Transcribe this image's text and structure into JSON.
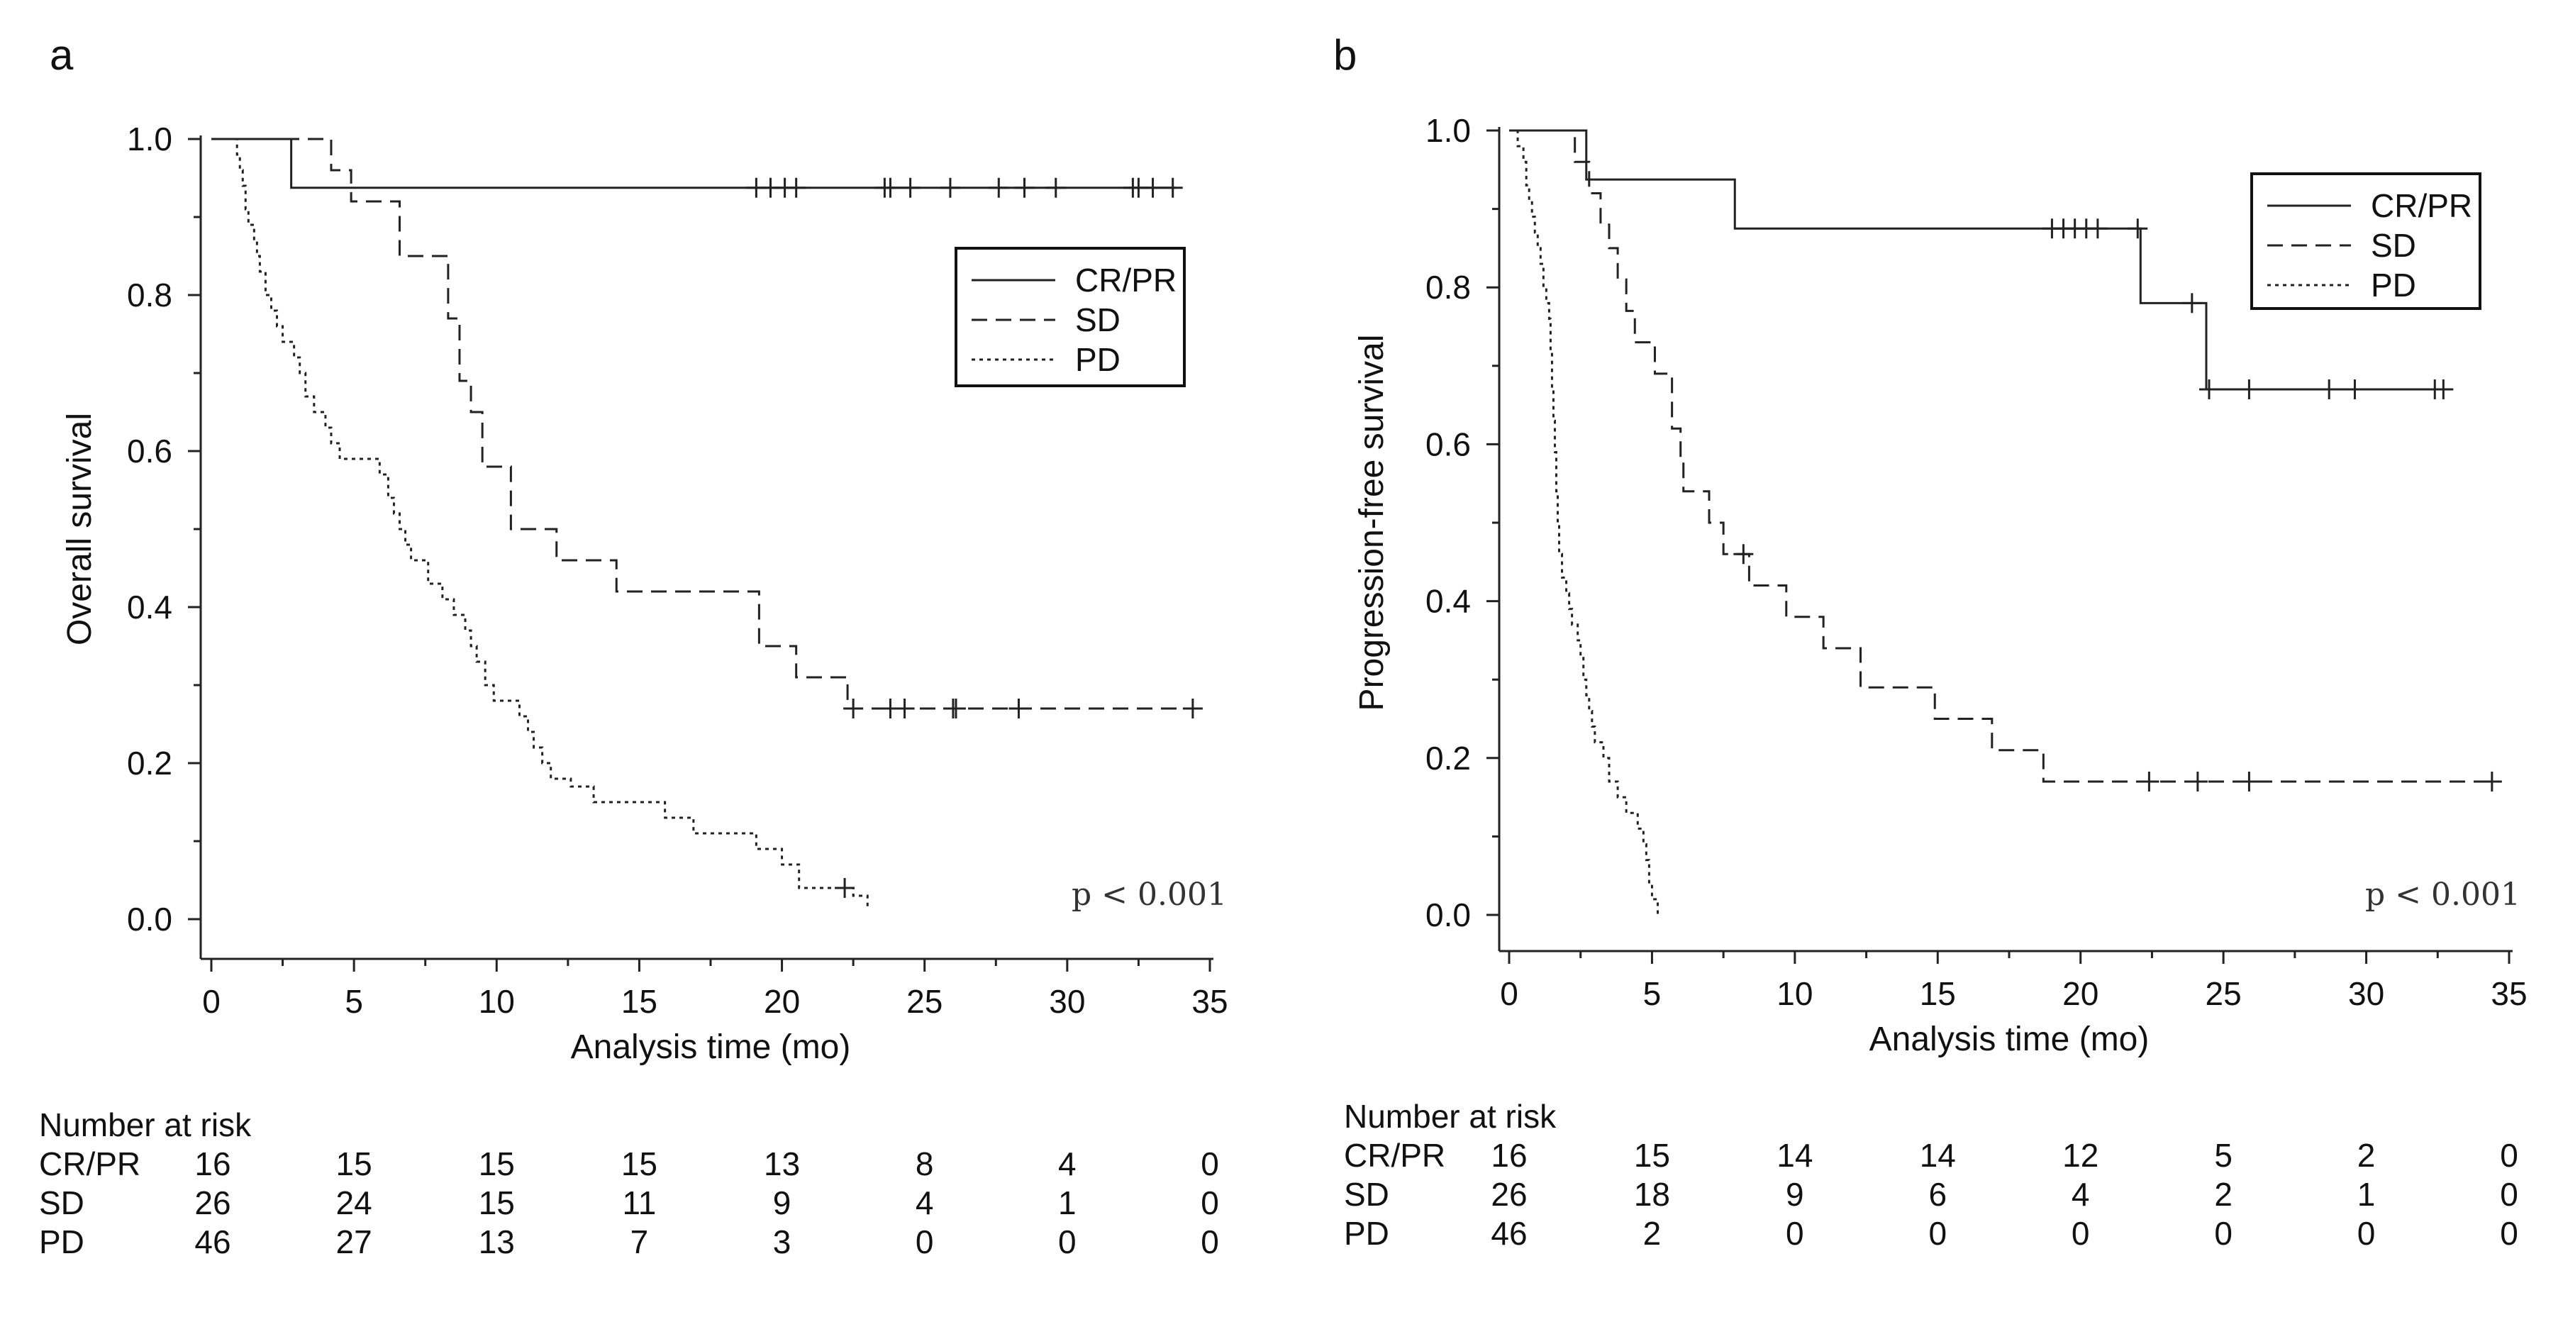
{
  "chart_data": [
    {
      "panel_label": "a",
      "type": "line",
      "subtype": "kaplan-meier",
      "xlabel": "Analysis time (mo)",
      "ylabel": "Overall survival",
      "xlim": [
        0,
        35
      ],
      "ylim": [
        0,
        1
      ],
      "x_ticks": [
        "0",
        "5",
        "10",
        "15",
        "20",
        "25",
        "30",
        "35"
      ],
      "y_ticks": [
        "0.0",
        "0.2",
        "0.4",
        "0.6",
        "0.8",
        "1.0"
      ],
      "legend_position": "top-right",
      "annotation": "p < 0.001",
      "series": [
        {
          "name": "CR/PR",
          "style": "solid",
          "steps": [
            [
              0,
              1.0
            ],
            [
              2.8,
              0.9375
            ]
          ],
          "end_time": 33.8,
          "censored": [
            19.1,
            19.6,
            20.1,
            20.5,
            23.6,
            23.8,
            24.5,
            25.9,
            27.6,
            28.5,
            29.6,
            32.3,
            32.5,
            33.0,
            33.7
          ]
        },
        {
          "name": "SD",
          "style": "dashed",
          "steps": [
            [
              0,
              1.0
            ],
            [
              4.2,
              0.96
            ],
            [
              4.9,
              0.92
            ],
            [
              6.6,
              0.85
            ],
            [
              8.3,
              0.77
            ],
            [
              8.7,
              0.69
            ],
            [
              9.1,
              0.65
            ],
            [
              9.5,
              0.58
            ],
            [
              10.5,
              0.5
            ],
            [
              12.1,
              0.46
            ],
            [
              14.2,
              0.42
            ],
            [
              19.2,
              0.35
            ],
            [
              20.5,
              0.31
            ],
            [
              22.3,
              0.27
            ]
          ],
          "end_time": 34.4,
          "censored": [
            22.5,
            23.8,
            24.3,
            26.0,
            26.1,
            28.3,
            34.4
          ]
        },
        {
          "name": "PD",
          "style": "dotted",
          "steps": [
            [
              0,
              1.0
            ],
            [
              0.9,
              0.98
            ],
            [
              1.0,
              0.96
            ],
            [
              1.1,
              0.94
            ],
            [
              1.2,
              0.91
            ],
            [
              1.3,
              0.89
            ],
            [
              1.5,
              0.87
            ],
            [
              1.6,
              0.85
            ],
            [
              1.7,
              0.83
            ],
            [
              1.9,
              0.8
            ],
            [
              2.1,
              0.78
            ],
            [
              2.3,
              0.76
            ],
            [
              2.5,
              0.74
            ],
            [
              2.9,
              0.72
            ],
            [
              3.1,
              0.7
            ],
            [
              3.3,
              0.67
            ],
            [
              3.6,
              0.65
            ],
            [
              4.0,
              0.63
            ],
            [
              4.2,
              0.61
            ],
            [
              4.5,
              0.59
            ],
            [
              5.9,
              0.57
            ],
            [
              6.2,
              0.54
            ],
            [
              6.4,
              0.52
            ],
            [
              6.6,
              0.5
            ],
            [
              6.8,
              0.48
            ],
            [
              7.0,
              0.46
            ],
            [
              7.6,
              0.43
            ],
            [
              8.1,
              0.41
            ],
            [
              8.5,
              0.39
            ],
            [
              8.9,
              0.37
            ],
            [
              9.1,
              0.35
            ],
            [
              9.3,
              0.33
            ],
            [
              9.6,
              0.3
            ],
            [
              9.9,
              0.28
            ],
            [
              10.8,
              0.26
            ],
            [
              11.1,
              0.24
            ],
            [
              11.3,
              0.22
            ],
            [
              11.6,
              0.2
            ],
            [
              11.9,
              0.18
            ],
            [
              12.6,
              0.17
            ],
            [
              13.4,
              0.15
            ],
            [
              15.9,
              0.13
            ],
            [
              16.9,
              0.11
            ],
            [
              19.1,
              0.09
            ],
            [
              20.0,
              0.07
            ],
            [
              20.6,
              0.04
            ],
            [
              22.5,
              0.03
            ],
            [
              23.0,
              0.015
            ]
          ],
          "end_time": 23.0,
          "censored": [
            22.2
          ]
        }
      ],
      "risk_table": {
        "title": "Number at risk",
        "times": [
          0,
          5,
          10,
          15,
          20,
          25,
          30,
          35
        ],
        "rows": [
          {
            "label": "CR/PR",
            "values": [
              "16",
              "15",
              "15",
              "15",
              "13",
              "8",
              "4",
              "0"
            ]
          },
          {
            "label": "SD",
            "values": [
              "26",
              "24",
              "15",
              "11",
              "9",
              "4",
              "1",
              "0"
            ]
          },
          {
            "label": "PD",
            "values": [
              "46",
              "27",
              "13",
              "7",
              "3",
              "0",
              "0",
              "0"
            ]
          }
        ]
      }
    },
    {
      "panel_label": "b",
      "type": "line",
      "subtype": "kaplan-meier",
      "xlabel": "Analysis time (mo)",
      "ylabel": "Progression-free survival",
      "xlim": [
        0,
        35
      ],
      "ylim": [
        0,
        1
      ],
      "x_ticks": [
        "0",
        "5",
        "10",
        "15",
        "20",
        "25",
        "30",
        "35"
      ],
      "y_ticks": [
        "0.0",
        "0.2",
        "0.4",
        "0.6",
        "0.8",
        "1.0"
      ],
      "legend_position": "top-right",
      "annotation": "p < 0.001",
      "series": [
        {
          "name": "CR/PR",
          "style": "solid",
          "steps": [
            [
              0,
              1.0
            ],
            [
              2.7,
              0.9375
            ],
            [
              7.9,
              0.875
            ],
            [
              22.1,
              0.78
            ],
            [
              24.4,
              0.67
            ]
          ],
          "end_time": 32.8,
          "censored": [
            19.0,
            19.4,
            19.8,
            20.2,
            20.6,
            22.0,
            23.9,
            24.5,
            25.9,
            28.7,
            29.6,
            32.4,
            32.7
          ]
        },
        {
          "name": "SD",
          "style": "dashed",
          "steps": [
            [
              0,
              1.0
            ],
            [
              2.3,
              0.96
            ],
            [
              2.8,
              0.92
            ],
            [
              3.2,
              0.88
            ],
            [
              3.5,
              0.85
            ],
            [
              3.8,
              0.81
            ],
            [
              4.1,
              0.77
            ],
            [
              4.4,
              0.73
            ],
            [
              5.1,
              0.69
            ],
            [
              5.7,
              0.62
            ],
            [
              6.0,
              0.58
            ],
            [
              6.1,
              0.54
            ],
            [
              7.0,
              0.5
            ],
            [
              7.5,
              0.46
            ],
            [
              8.4,
              0.42
            ],
            [
              9.7,
              0.38
            ],
            [
              11.0,
              0.34
            ],
            [
              12.3,
              0.29
            ],
            [
              14.9,
              0.25
            ],
            [
              16.9,
              0.21
            ],
            [
              18.7,
              0.17
            ]
          ],
          "end_time": 34.5,
          "censored": [
            8.2,
            22.4,
            24.1,
            25.9,
            34.4
          ]
        },
        {
          "name": "PD",
          "style": "dotted",
          "steps": [
            [
              0,
              1.0
            ],
            [
              0.3,
              0.98
            ],
            [
              0.5,
              0.96
            ],
            [
              0.6,
              0.93
            ],
            [
              0.7,
              0.91
            ],
            [
              0.8,
              0.89
            ],
            [
              0.9,
              0.87
            ],
            [
              1.0,
              0.85
            ],
            [
              1.1,
              0.83
            ],
            [
              1.2,
              0.8
            ],
            [
              1.3,
              0.78
            ],
            [
              1.4,
              0.76
            ],
            [
              1.45,
              0.72
            ],
            [
              1.5,
              0.67
            ],
            [
              1.55,
              0.63
            ],
            [
              1.6,
              0.59
            ],
            [
              1.65,
              0.54
            ],
            [
              1.7,
              0.5
            ],
            [
              1.75,
              0.46
            ],
            [
              1.85,
              0.43
            ],
            [
              2.0,
              0.41
            ],
            [
              2.1,
              0.39
            ],
            [
              2.2,
              0.37
            ],
            [
              2.4,
              0.35
            ],
            [
              2.5,
              0.33
            ],
            [
              2.6,
              0.3
            ],
            [
              2.7,
              0.28
            ],
            [
              2.8,
              0.26
            ],
            [
              2.9,
              0.24
            ],
            [
              3.0,
              0.22
            ],
            [
              3.3,
              0.2
            ],
            [
              3.5,
              0.17
            ],
            [
              3.8,
              0.15
            ],
            [
              4.1,
              0.13
            ],
            [
              4.5,
              0.11
            ],
            [
              4.7,
              0.09
            ],
            [
              4.8,
              0.07
            ],
            [
              4.9,
              0.04
            ],
            [
              5.0,
              0.02
            ],
            [
              5.2,
              0.0
            ]
          ],
          "end_time": 5.2,
          "censored": []
        }
      ],
      "risk_table": {
        "title": "Number at risk",
        "times": [
          0,
          5,
          10,
          15,
          20,
          25,
          30,
          35
        ],
        "rows": [
          {
            "label": "CR/PR",
            "values": [
              "16",
              "15",
              "14",
              "14",
              "12",
              "5",
              "2",
              "0"
            ]
          },
          {
            "label": "SD",
            "values": [
              "26",
              "18",
              "9",
              "6",
              "4",
              "2",
              "1",
              "0"
            ]
          },
          {
            "label": "PD",
            "values": [
              "46",
              "2",
              "0",
              "0",
              "0",
              "0",
              "0",
              "0"
            ]
          }
        ]
      }
    }
  ]
}
